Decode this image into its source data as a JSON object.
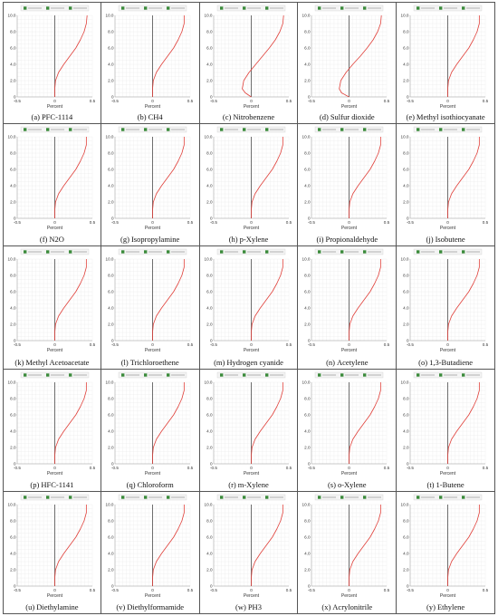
{
  "figure": {
    "panels": [
      {
        "letter": "(a)",
        "name": "PFC-1114"
      },
      {
        "letter": "(b)",
        "name": "CH4"
      },
      {
        "letter": "(c)",
        "name": "Nitrobenzene"
      },
      {
        "letter": "(d)",
        "name": "Sulfur dioxide"
      },
      {
        "letter": "(e)",
        "name": "Methyl isothiocyanate"
      },
      {
        "letter": "(f)",
        "name": "N2O"
      },
      {
        "letter": "(g)",
        "name": "Isopropylamine"
      },
      {
        "letter": "(h)",
        "name": "p-Xylene"
      },
      {
        "letter": "(i)",
        "name": "Propionaldehyde"
      },
      {
        "letter": "(j)",
        "name": "Isobutene"
      },
      {
        "letter": "(k)",
        "name": "Methyl Acetoacetate"
      },
      {
        "letter": "(l)",
        "name": "Trichloroethene"
      },
      {
        "letter": "(m)",
        "name": "Hydrogen cyanide"
      },
      {
        "letter": "(n)",
        "name": "Acetylene"
      },
      {
        "letter": "(o)",
        "name": "1,3-Butadiene"
      },
      {
        "letter": "(p)",
        "name": "HFC-1141"
      },
      {
        "letter": "(q)",
        "name": "Chloroform"
      },
      {
        "letter": "(r)",
        "name": "m-Xylene"
      },
      {
        "letter": "(s)",
        "name": "o-Xylene"
      },
      {
        "letter": "(t)",
        "name": "1-Butene"
      },
      {
        "letter": "(u)",
        "name": "Diethylamine"
      },
      {
        "letter": "(v)",
        "name": "Diethylformamide"
      },
      {
        "letter": "(w)",
        "name": "PH3"
      },
      {
        "letter": "(x)",
        "name": "Acrylonitrile"
      },
      {
        "letter": "(y)",
        "name": "Ethylene"
      }
    ]
  },
  "chart_data": {
    "type": "line",
    "xlabel": "Percent",
    "ylabel": "",
    "xlim": [
      -0.5,
      0.5
    ],
    "ylim": [
      0,
      10
    ],
    "x_ticks": [
      "-0.5",
      "0",
      "0.5"
    ],
    "y_ticks": [
      "0",
      "2.0",
      "4.0",
      "6.0",
      "8.0",
      "10.0"
    ],
    "grid": true,
    "legend": "top",
    "series_colors": {
      "curve": "#e0403a",
      "axis": "#333333"
    },
    "legend_swatch_color": "#3a8a3a",
    "curves": [
      {
        "panel": "(a)",
        "points": [
          [
            0,
            0
          ],
          [
            0,
            1
          ],
          [
            0.01,
            2
          ],
          [
            0.05,
            3
          ],
          [
            0.12,
            4
          ],
          [
            0.2,
            5
          ],
          [
            0.28,
            6
          ],
          [
            0.34,
            7
          ],
          [
            0.39,
            8
          ],
          [
            0.42,
            9
          ],
          [
            0.43,
            10
          ]
        ]
      },
      {
        "panel": "(b)",
        "points": [
          [
            0,
            0
          ],
          [
            0,
            1
          ],
          [
            0.01,
            2
          ],
          [
            0.05,
            3
          ],
          [
            0.12,
            4
          ],
          [
            0.2,
            5
          ],
          [
            0.28,
            6
          ],
          [
            0.34,
            7
          ],
          [
            0.39,
            8
          ],
          [
            0.42,
            9
          ],
          [
            0.42,
            10
          ]
        ]
      },
      {
        "panel": "(c)",
        "points": [
          [
            0,
            0
          ],
          [
            -0.08,
            0.5
          ],
          [
            -0.12,
            1
          ],
          [
            -0.1,
            2
          ],
          [
            -0.03,
            3
          ],
          [
            0.06,
            4
          ],
          [
            0.15,
            5
          ],
          [
            0.24,
            6
          ],
          [
            0.32,
            7
          ],
          [
            0.38,
            8
          ],
          [
            0.42,
            9
          ],
          [
            0.43,
            10
          ]
        ]
      },
      {
        "panel": "(d)",
        "points": [
          [
            0,
            0
          ],
          [
            -0.1,
            0.5
          ],
          [
            -0.13,
            1
          ],
          [
            -0.11,
            2
          ],
          [
            -0.04,
            3
          ],
          [
            0.05,
            4
          ],
          [
            0.15,
            5
          ],
          [
            0.24,
            6
          ],
          [
            0.32,
            7
          ],
          [
            0.38,
            8
          ],
          [
            0.42,
            9
          ],
          [
            0.43,
            10
          ]
        ]
      },
      {
        "panel": "(e)",
        "points": [
          [
            0,
            0
          ],
          [
            0,
            1
          ],
          [
            0.01,
            2
          ],
          [
            0.05,
            3
          ],
          [
            0.12,
            4
          ],
          [
            0.2,
            5
          ],
          [
            0.28,
            6
          ],
          [
            0.34,
            7
          ],
          [
            0.39,
            8
          ],
          [
            0.42,
            9
          ],
          [
            0.42,
            10
          ]
        ]
      },
      {
        "panel": "(f)",
        "points": [
          [
            0,
            0
          ],
          [
            0,
            1
          ],
          [
            0.01,
            2
          ],
          [
            0.05,
            3
          ],
          [
            0.12,
            4
          ],
          [
            0.2,
            5
          ],
          [
            0.28,
            6
          ],
          [
            0.34,
            7
          ],
          [
            0.39,
            8
          ],
          [
            0.42,
            9
          ],
          [
            0.42,
            10
          ]
        ]
      },
      {
        "panel": "(g)",
        "points": [
          [
            0,
            0
          ],
          [
            0,
            1
          ],
          [
            0.01,
            2
          ],
          [
            0.05,
            3
          ],
          [
            0.12,
            4
          ],
          [
            0.2,
            5
          ],
          [
            0.28,
            6
          ],
          [
            0.34,
            7
          ],
          [
            0.39,
            8
          ],
          [
            0.42,
            9
          ],
          [
            0.42,
            10
          ]
        ]
      },
      {
        "panel": "(h)",
        "points": [
          [
            0,
            0
          ],
          [
            0,
            1
          ],
          [
            0.01,
            2
          ],
          [
            0.05,
            3
          ],
          [
            0.12,
            4
          ],
          [
            0.2,
            5
          ],
          [
            0.28,
            6
          ],
          [
            0.34,
            7
          ],
          [
            0.39,
            8
          ],
          [
            0.42,
            9
          ],
          [
            0.42,
            10
          ]
        ]
      },
      {
        "panel": "(i)",
        "points": [
          [
            0,
            0
          ],
          [
            0,
            1
          ],
          [
            0.01,
            2
          ],
          [
            0.05,
            3
          ],
          [
            0.12,
            4
          ],
          [
            0.2,
            5
          ],
          [
            0.28,
            6
          ],
          [
            0.34,
            7
          ],
          [
            0.39,
            8
          ],
          [
            0.42,
            9
          ],
          [
            0.42,
            10
          ]
        ]
      },
      {
        "panel": "(j)",
        "points": [
          [
            0,
            0
          ],
          [
            0,
            1
          ],
          [
            0.01,
            2
          ],
          [
            0.05,
            3
          ],
          [
            0.12,
            4
          ],
          [
            0.2,
            5
          ],
          [
            0.28,
            6
          ],
          [
            0.34,
            7
          ],
          [
            0.39,
            8
          ],
          [
            0.42,
            9
          ],
          [
            0.42,
            10
          ]
        ]
      },
      {
        "panel": "(k)",
        "points": [
          [
            0,
            0
          ],
          [
            0,
            1
          ],
          [
            0.01,
            2
          ],
          [
            0.05,
            3
          ],
          [
            0.12,
            4
          ],
          [
            0.2,
            5
          ],
          [
            0.28,
            6
          ],
          [
            0.34,
            7
          ],
          [
            0.39,
            8
          ],
          [
            0.42,
            9
          ],
          [
            0.42,
            10
          ]
        ]
      },
      {
        "panel": "(l)",
        "points": [
          [
            0,
            0
          ],
          [
            0,
            1
          ],
          [
            0.01,
            2
          ],
          [
            0.05,
            3
          ],
          [
            0.12,
            4
          ],
          [
            0.2,
            5
          ],
          [
            0.28,
            6
          ],
          [
            0.34,
            7
          ],
          [
            0.39,
            8
          ],
          [
            0.42,
            9
          ],
          [
            0.42,
            10
          ]
        ]
      },
      {
        "panel": "(m)",
        "points": [
          [
            0,
            0
          ],
          [
            0,
            1
          ],
          [
            0.01,
            2
          ],
          [
            0.05,
            3
          ],
          [
            0.12,
            4
          ],
          [
            0.2,
            5
          ],
          [
            0.28,
            6
          ],
          [
            0.34,
            7
          ],
          [
            0.39,
            8
          ],
          [
            0.42,
            9
          ],
          [
            0.42,
            10
          ]
        ]
      },
      {
        "panel": "(n)",
        "points": [
          [
            0,
            0
          ],
          [
            0,
            1
          ],
          [
            0.01,
            2
          ],
          [
            0.05,
            3
          ],
          [
            0.12,
            4
          ],
          [
            0.2,
            5
          ],
          [
            0.28,
            6
          ],
          [
            0.34,
            7
          ],
          [
            0.39,
            8
          ],
          [
            0.42,
            9
          ],
          [
            0.42,
            10
          ]
        ]
      },
      {
        "panel": "(o)",
        "points": [
          [
            0,
            0
          ],
          [
            0,
            1
          ],
          [
            0.01,
            2
          ],
          [
            0.05,
            3
          ],
          [
            0.12,
            4
          ],
          [
            0.2,
            5
          ],
          [
            0.28,
            6
          ],
          [
            0.34,
            7
          ],
          [
            0.39,
            8
          ],
          [
            0.42,
            9
          ],
          [
            0.42,
            10
          ]
        ]
      },
      {
        "panel": "(p)",
        "points": [
          [
            0,
            0
          ],
          [
            0,
            1
          ],
          [
            0.01,
            2
          ],
          [
            0.05,
            3
          ],
          [
            0.12,
            4
          ],
          [
            0.2,
            5
          ],
          [
            0.28,
            6
          ],
          [
            0.34,
            7
          ],
          [
            0.39,
            8
          ],
          [
            0.42,
            9
          ],
          [
            0.42,
            10
          ]
        ]
      },
      {
        "panel": "(q)",
        "points": [
          [
            0,
            0
          ],
          [
            0,
            1
          ],
          [
            0.01,
            2
          ],
          [
            0.05,
            3
          ],
          [
            0.12,
            4
          ],
          [
            0.2,
            5
          ],
          [
            0.28,
            6
          ],
          [
            0.34,
            7
          ],
          [
            0.39,
            8
          ],
          [
            0.42,
            9
          ],
          [
            0.42,
            10
          ]
        ]
      },
      {
        "panel": "(r)",
        "points": [
          [
            0,
            0
          ],
          [
            0,
            1
          ],
          [
            0.01,
            2
          ],
          [
            0.05,
            3
          ],
          [
            0.12,
            4
          ],
          [
            0.2,
            5
          ],
          [
            0.28,
            6
          ],
          [
            0.34,
            7
          ],
          [
            0.39,
            8
          ],
          [
            0.42,
            9
          ],
          [
            0.42,
            10
          ]
        ]
      },
      {
        "panel": "(s)",
        "points": [
          [
            0,
            0
          ],
          [
            0,
            1
          ],
          [
            0.01,
            2
          ],
          [
            0.05,
            3
          ],
          [
            0.12,
            4
          ],
          [
            0.2,
            5
          ],
          [
            0.28,
            6
          ],
          [
            0.34,
            7
          ],
          [
            0.39,
            8
          ],
          [
            0.42,
            9
          ],
          [
            0.42,
            10
          ]
        ]
      },
      {
        "panel": "(t)",
        "points": [
          [
            0,
            0
          ],
          [
            0,
            1
          ],
          [
            0.01,
            2
          ],
          [
            0.05,
            3
          ],
          [
            0.12,
            4
          ],
          [
            0.2,
            5
          ],
          [
            0.28,
            6
          ],
          [
            0.34,
            7
          ],
          [
            0.39,
            8
          ],
          [
            0.42,
            9
          ],
          [
            0.42,
            10
          ]
        ]
      },
      {
        "panel": "(u)",
        "points": [
          [
            0,
            0
          ],
          [
            0,
            1
          ],
          [
            0.01,
            2
          ],
          [
            0.05,
            3
          ],
          [
            0.12,
            4
          ],
          [
            0.2,
            5
          ],
          [
            0.28,
            6
          ],
          [
            0.34,
            7
          ],
          [
            0.39,
            8
          ],
          [
            0.42,
            9
          ],
          [
            0.42,
            10
          ]
        ]
      },
      {
        "panel": "(v)",
        "points": [
          [
            0,
            0
          ],
          [
            0,
            1
          ],
          [
            0.01,
            2
          ],
          [
            0.05,
            3
          ],
          [
            0.12,
            4
          ],
          [
            0.2,
            5
          ],
          [
            0.28,
            6
          ],
          [
            0.34,
            7
          ],
          [
            0.39,
            8
          ],
          [
            0.42,
            9
          ],
          [
            0.42,
            10
          ]
        ]
      },
      {
        "panel": "(w)",
        "points": [
          [
            0,
            0
          ],
          [
            0,
            1
          ],
          [
            0.01,
            2
          ],
          [
            0.05,
            3
          ],
          [
            0.12,
            4
          ],
          [
            0.2,
            5
          ],
          [
            0.28,
            6
          ],
          [
            0.34,
            7
          ],
          [
            0.39,
            8
          ],
          [
            0.42,
            9
          ],
          [
            0.42,
            10
          ]
        ]
      },
      {
        "panel": "(x)",
        "points": [
          [
            0,
            0
          ],
          [
            0,
            1
          ],
          [
            0.01,
            2
          ],
          [
            0.05,
            3
          ],
          [
            0.12,
            4
          ],
          [
            0.2,
            5
          ],
          [
            0.28,
            6
          ],
          [
            0.34,
            7
          ],
          [
            0.39,
            8
          ],
          [
            0.42,
            9
          ],
          [
            0.42,
            10
          ]
        ]
      },
      {
        "panel": "(y)",
        "points": [
          [
            0,
            0
          ],
          [
            0,
            1
          ],
          [
            0.01,
            2
          ],
          [
            0.05,
            3
          ],
          [
            0.12,
            4
          ],
          [
            0.2,
            5
          ],
          [
            0.28,
            6
          ],
          [
            0.34,
            7
          ],
          [
            0.39,
            8
          ],
          [
            0.42,
            9
          ],
          [
            0.42,
            10
          ]
        ]
      }
    ]
  }
}
